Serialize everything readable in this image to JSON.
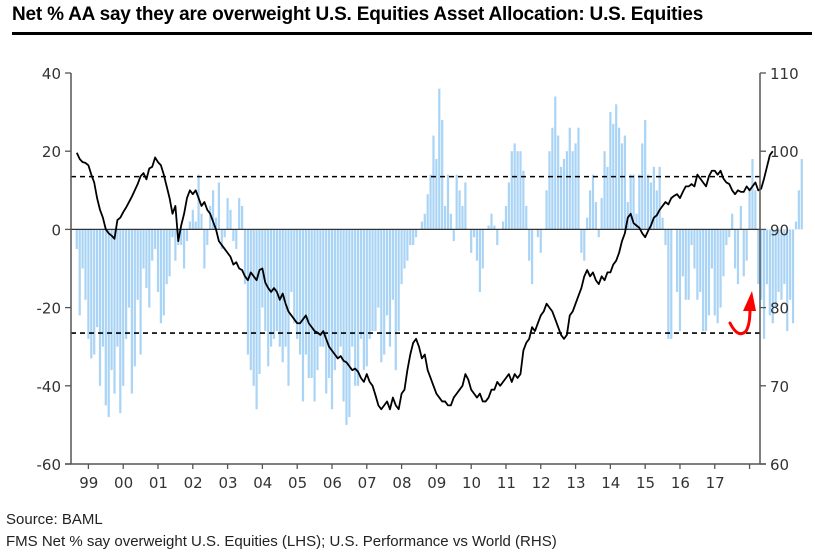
{
  "title": "Net % AA say they are overweight U.S. Equities Asset Allocation:  U.S. Equities",
  "source": "Source: BAML",
  "caption": "FMS Net % say overweight U.S. Equities (LHS); U.S. Performance vs World (RHS)",
  "chart_data": {
    "type": "bar+line",
    "title": "Net % AA say they are overweight U.S. Equities Asset Allocation:  U.S. Equities",
    "x_start": "1998-09",
    "x_step": "month",
    "x_range_years": [
      1998.5,
      2018.3
    ],
    "x_tick_labels": [
      "99",
      "00",
      "01",
      "02",
      "03",
      "04",
      "05",
      "06",
      "07",
      "08",
      "09",
      "10",
      "11",
      "12",
      "13",
      "14",
      "15",
      "16",
      "17"
    ],
    "left_axis": {
      "label": "FMS Net % say overweight U.S. Equities (LHS)",
      "range": [
        -60,
        40
      ],
      "ticks": [
        40,
        20,
        0,
        -20,
        -40,
        -60
      ]
    },
    "right_axis": {
      "label": "U.S. Performance vs World (RHS)",
      "range": [
        60,
        110
      ],
      "ticks": [
        110,
        100,
        90,
        80,
        70,
        60
      ]
    },
    "reference_lines_lhs": [
      {
        "value": 13.5,
        "style": "dashed"
      },
      {
        "value": -26.5,
        "style": "dashed"
      },
      {
        "value": 0,
        "style": "solid"
      }
    ],
    "annotation": {
      "type": "red-curved-arrow",
      "position": "bottom-right",
      "description": "upturn arrow near 2017-2018",
      "color": "#ff0000"
    },
    "series": [
      {
        "name": "FMS Net % say overweight U.S. Equities (LHS)",
        "type": "bar",
        "axis": "left",
        "color": "#aad4f5",
        "values": [
          -5,
          -22,
          -10,
          -18,
          -28,
          -33,
          -32,
          -25,
          -40,
          -30,
          -45,
          -48,
          -36,
          -42,
          -30,
          -47,
          -40,
          -28,
          -20,
          -42,
          -35,
          -18,
          -32,
          -10,
          -15,
          -20,
          -8,
          -5,
          -16,
          -24,
          -22,
          -14,
          -12,
          -2,
          -8,
          -4,
          -4,
          -10,
          -3,
          2,
          5,
          2,
          14,
          4,
          -10,
          -4,
          6,
          10,
          3,
          12,
          -5,
          -2,
          8,
          5,
          -3,
          -5,
          8,
          6,
          -14,
          -32,
          -36,
          -40,
          -46,
          -37,
          -20,
          -26,
          -35,
          -30,
          -28,
          -26,
          -30,
          -34,
          -30,
          -40,
          -16,
          -24,
          -28,
          -32,
          -44,
          -32,
          -38,
          -38,
          -44,
          -36,
          -30,
          -30,
          -42,
          -38,
          -46,
          -36,
          -33,
          -30,
          -44,
          -50,
          -48,
          -30,
          -40,
          -40,
          -28,
          -36,
          -35,
          -28,
          -26,
          -26,
          -20,
          -34,
          -32,
          -22,
          -30,
          -18,
          -36,
          -26,
          -14,
          -10,
          -8,
          -4,
          -4,
          -2,
          0,
          2,
          4,
          9,
          14,
          24,
          18,
          36,
          28,
          6,
          14,
          4,
          -3,
          14,
          10,
          6,
          12,
          0,
          -6,
          -2,
          -8,
          -16,
          -10,
          0,
          1,
          4,
          1,
          -4,
          0,
          2,
          6,
          12,
          20,
          22,
          20,
          20,
          15,
          6,
          -8,
          -14,
          0,
          -2,
          -6,
          0,
          10,
          20,
          26,
          34,
          24,
          16,
          18,
          20,
          26,
          20,
          22,
          26,
          -6,
          -8,
          3,
          10,
          14,
          7,
          -2,
          8,
          20,
          16,
          30,
          27,
          32,
          26,
          22,
          24,
          7,
          14,
          14,
          4,
          14,
          22,
          28,
          14,
          12,
          16,
          10,
          16,
          3,
          -4,
          -28,
          -28,
          0,
          -16,
          -26,
          -12,
          -18,
          -18,
          -4,
          -10,
          -18,
          -16,
          -26,
          -26,
          -22,
          -10,
          -22,
          -24,
          -20,
          -12,
          -4,
          -2,
          4,
          -10,
          -14,
          6,
          -12,
          -8,
          10,
          18,
          10,
          -14,
          -18,
          -28,
          -14,
          -22,
          -24,
          -20,
          -16,
          -18,
          -14,
          -26,
          -18,
          -24,
          2,
          10,
          18
        ]
      },
      {
        "name": "U.S. Performance vs World (RHS)",
        "type": "line",
        "axis": "right",
        "color": "#000000",
        "values": [
          99.8,
          99.0,
          98.6,
          98.5,
          98.2,
          97.0,
          96.0,
          94.0,
          92.5,
          91.5,
          90.0,
          89.5,
          89.2,
          88.8,
          91.2,
          91.5,
          92.2,
          92.8,
          93.5,
          94.2,
          95.0,
          95.8,
          96.8,
          97.2,
          96.4,
          97.8,
          98.0,
          99.2,
          98.6,
          98.2,
          97.0,
          95.5,
          94.0,
          92.0,
          93.0,
          88.5,
          90.5,
          92.0,
          94.0,
          95.0,
          94.5,
          95.0,
          94.0,
          93.0,
          93.5,
          92.5,
          92.0,
          91.0,
          90.0,
          88.5,
          88.0,
          87.5,
          87.0,
          86.5,
          85.5,
          85.8,
          85.0,
          84.8,
          84.0,
          83.5,
          84.5,
          84.0,
          83.5,
          84.8,
          85.0,
          83.2,
          82.5,
          82.0,
          82.5,
          82.0,
          81.0,
          81.8,
          80.5,
          79.5,
          79.0,
          78.5,
          78.0,
          78.0,
          78.5,
          79.0,
          78.0,
          77.5,
          77.0,
          76.8,
          76.5,
          77.0,
          76.0,
          75.0,
          74.5,
          74.0,
          73.5,
          73.8,
          73.2,
          73.0,
          72.5,
          72.0,
          72.2,
          71.8,
          71.0,
          70.5,
          71.5,
          70.5,
          70.0,
          68.8,
          67.5,
          67.0,
          67.5,
          68.0,
          67.0,
          68.5,
          67.5,
          67.0,
          69.0,
          69.5,
          72.0,
          74.0,
          75.5,
          76.0,
          75.0,
          73.5,
          74.0,
          72.0,
          71.0,
          70.0,
          69.0,
          68.5,
          68.0,
          68.0,
          67.5,
          67.5,
          68.5,
          69.0,
          69.5,
          70.0,
          71.5,
          70.8,
          69.5,
          69.0,
          68.5,
          69.0,
          68.0,
          68.0,
          68.5,
          69.5,
          69.5,
          70.5,
          70.0,
          70.5,
          71.0,
          71.5,
          70.5,
          71.5,
          71.0,
          71.5,
          74.5,
          75.5,
          76.0,
          77.5,
          77.0,
          78.0,
          79.0,
          79.5,
          80.5,
          80.0,
          79.5,
          78.5,
          77.5,
          76.5,
          76.0,
          76.5,
          79.0,
          79.5,
          80.5,
          81.5,
          82.5,
          84.0,
          84.8,
          84.0,
          84.5,
          83.5,
          83.0,
          84.0,
          83.5,
          84.5,
          84.5,
          85.5,
          86.0,
          87.0,
          88.5,
          89.5,
          91.5,
          92.0,
          90.8,
          90.5,
          90.2,
          89.5,
          89.0,
          89.8,
          90.5,
          91.5,
          91.8,
          92.5,
          93.0,
          93.5,
          93.2,
          94.0,
          94.3,
          94.5,
          94.0,
          94.8,
          95.5,
          95.5,
          95.8,
          95.5,
          97.0,
          96.5,
          96.0,
          95.5,
          96.8,
          97.5,
          97.5,
          97.0,
          97.5,
          96.5,
          96.0,
          95.8,
          95.0,
          94.5,
          95.0,
          94.8,
          94.8,
          95.5,
          95.0,
          95.5,
          96.0,
          95.0,
          95.2,
          96.5,
          98.0,
          99.5,
          100.0
        ]
      }
    ]
  }
}
